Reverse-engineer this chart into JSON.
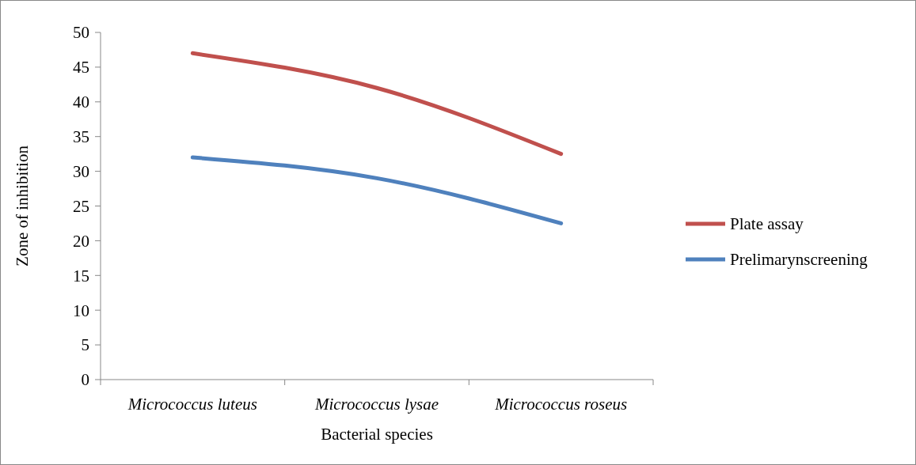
{
  "chart_data": {
    "type": "line",
    "xlabel": "Bacterial species",
    "ylabel": "Zone of inhibition",
    "categories": [
      "Micrococcus luteus",
      "Micrococcus lysae",
      "Micrococcus roseus"
    ],
    "series": [
      {
        "name": "Plate assay",
        "color": "#c0504d",
        "values": [
          47,
          42,
          32.5
        ]
      },
      {
        "name": "Prelimarynscreening",
        "color": "#4f81bd",
        "values": [
          32,
          29,
          22.5
        ]
      }
    ],
    "ylim": [
      0,
      50
    ],
    "yticks": [
      0,
      5,
      10,
      15,
      20,
      25,
      30,
      35,
      40,
      45,
      50
    ],
    "legend": "right",
    "marker": "none",
    "line_style": "solid"
  }
}
